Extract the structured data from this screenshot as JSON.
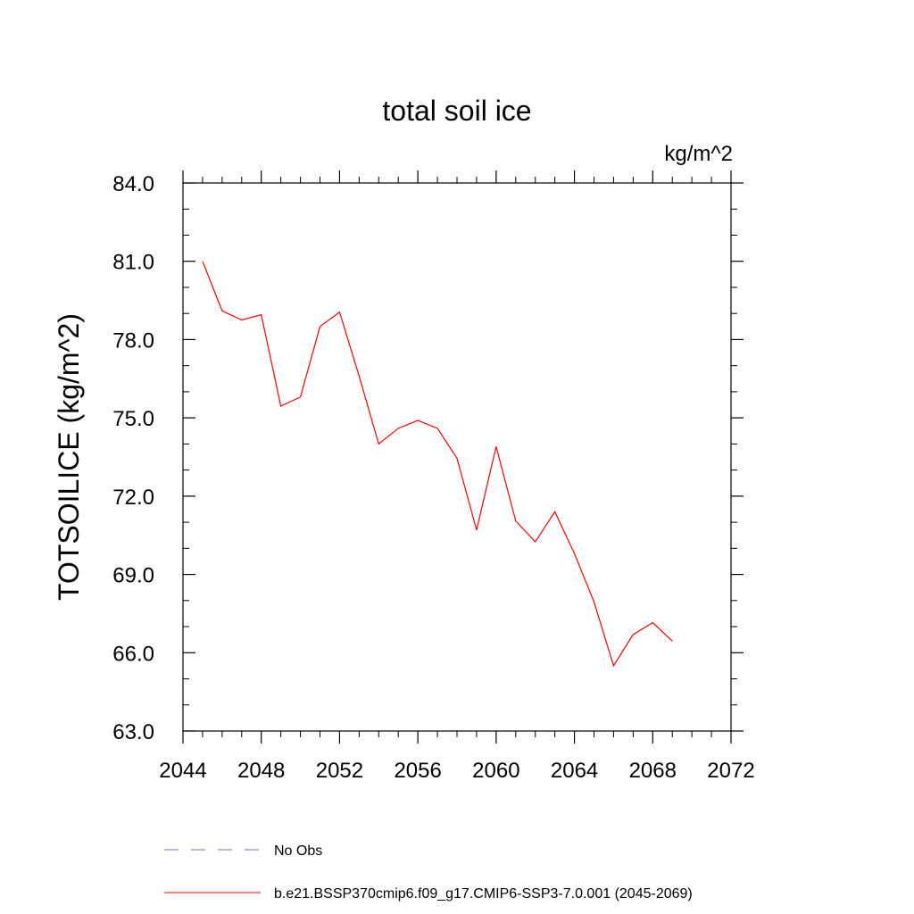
{
  "chart_data": {
    "type": "line",
    "title": "total soil ice",
    "units_label": "kg/m^2",
    "ylabel": "TOTSOILICE  (kg/m^2)",
    "xlabel": "",
    "xlim": [
      2044,
      2072
    ],
    "ylim": [
      63.0,
      84.0
    ],
    "x_ticks": [
      "2044",
      "2048",
      "2052",
      "2056",
      "2060",
      "2064",
      "2068",
      "2072"
    ],
    "y_ticks": [
      "63.0",
      "66.0",
      "69.0",
      "72.0",
      "75.0",
      "78.0",
      "81.0",
      "84.0"
    ],
    "grid": false,
    "legend_position": "bottom",
    "series": [
      {
        "name": "b.e21.BSSP370cmip6.f09_g17.CMIP6-SSP3-7.0.001 (2045-2069)",
        "color": "#ff0000",
        "style": "solid",
        "x": [
          2045,
          2046,
          2047,
          2048,
          2049,
          2050,
          2051,
          2052,
          2053,
          2054,
          2055,
          2056,
          2057,
          2058,
          2059,
          2060,
          2061,
          2062,
          2063,
          2064,
          2065,
          2066,
          2067,
          2068,
          2069
        ],
        "values": [
          81.0,
          79.1,
          78.75,
          78.95,
          75.45,
          75.8,
          78.5,
          79.05,
          76.6,
          74.0,
          74.6,
          74.9,
          74.6,
          73.45,
          70.7,
          73.9,
          71.05,
          70.25,
          71.4,
          69.8,
          67.95,
          65.5,
          66.7,
          67.15,
          66.45
        ]
      }
    ],
    "legend": [
      {
        "label": "No Obs",
        "color": "#7a6fbf",
        "style": "dashed"
      },
      {
        "label": "b.e21.BSSP370cmip6.f09_g17.CMIP6-SSP3-7.0.001 (2045-2069)",
        "color": "#ff0000",
        "style": "solid"
      }
    ]
  }
}
